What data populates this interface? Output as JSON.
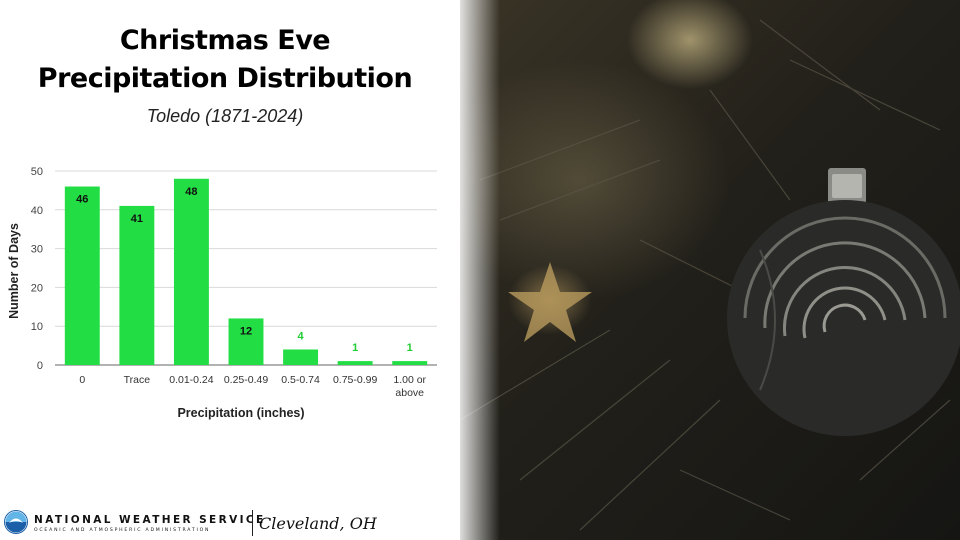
{
  "title_line1": "Christmas Eve",
  "title_line2": "Precipitation Distribution",
  "subtitle": "Toledo (1871-2024)",
  "chart_data": {
    "type": "bar",
    "categories": [
      "0",
      "Trace",
      "0.01-0.24",
      "0.25-0.49",
      "0.5-0.74",
      "0.75-0.99",
      "1.00 or above"
    ],
    "values": [
      46,
      41,
      48,
      12,
      4,
      1,
      1
    ],
    "xlabel": "Precipitation (inches)",
    "ylabel": "Number of Days",
    "ylim": [
      0,
      50
    ],
    "yticks": [
      0,
      10,
      20,
      30,
      40,
      50
    ],
    "grid": true,
    "bar_color": "#22dd44",
    "label_color_inside": "#111111",
    "label_color_outside": "#22cc33"
  },
  "footer": {
    "org": "NATIONAL WEATHER SERVICE",
    "org_sub": "OCEANIC AND ATMOSPHERIC ADMINISTRATION",
    "office": "Cleveland, OH"
  },
  "colors": {
    "noaa_blue": "#1a5fa8",
    "noaa_light": "#63b5e8"
  }
}
